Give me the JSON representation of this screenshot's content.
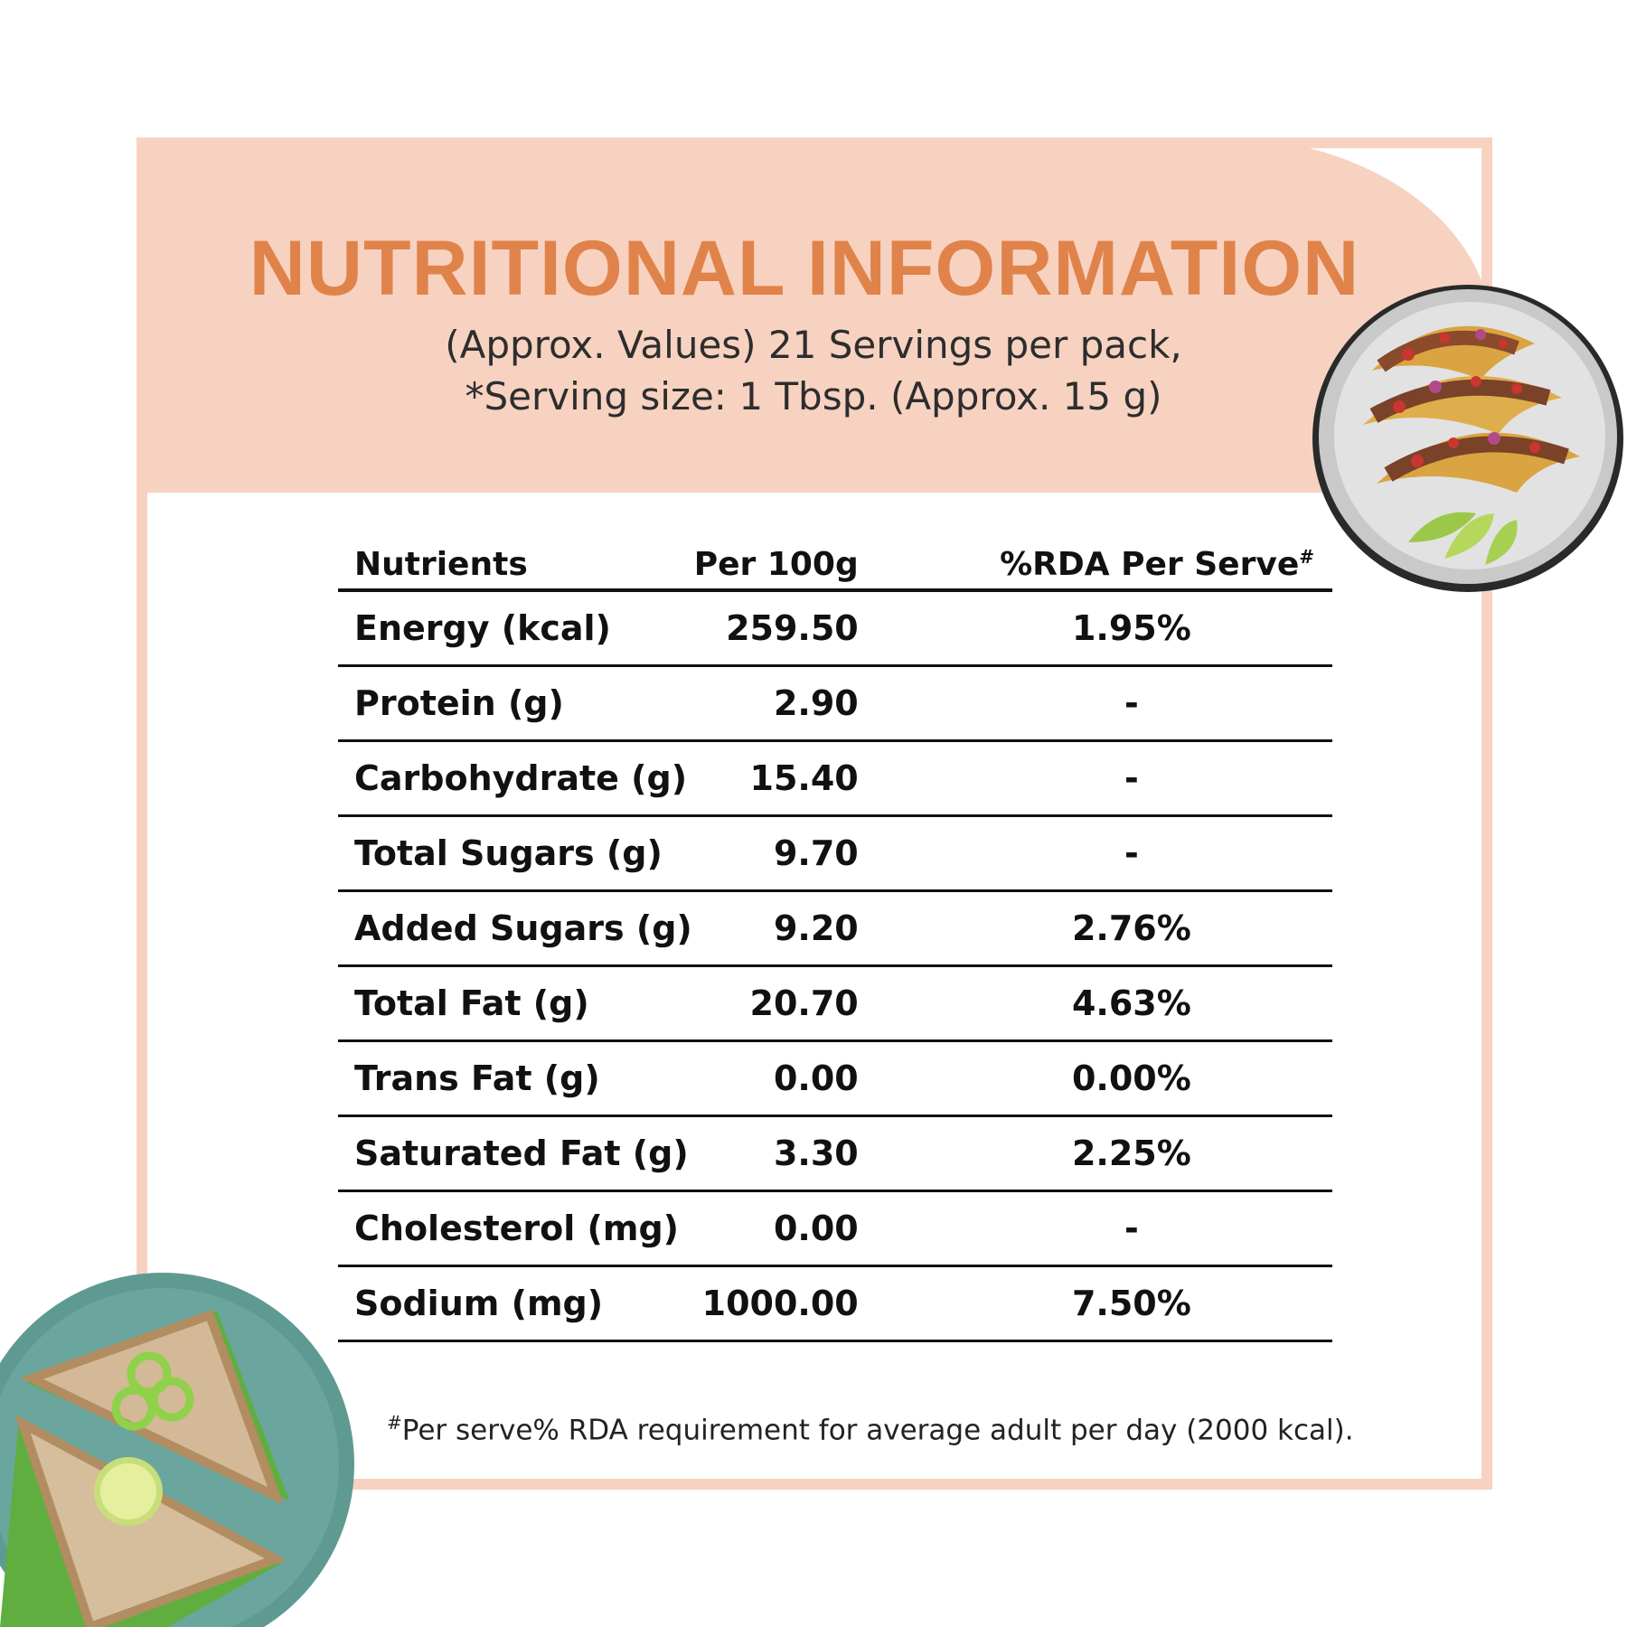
{
  "header": {
    "title": "NUTRITIONAL INFORMATION",
    "subtitle_line1": "(Approx. Values) 21 Servings per pack,",
    "subtitle_line2": "*Serving size: 1 Tbsp. (Approx. 15 g)"
  },
  "table": {
    "headers": {
      "nutrients": "Nutrients",
      "per100": "Per 100g",
      "rda": "%RDA Per Serve",
      "rda_mark": "#"
    },
    "rows": [
      {
        "name": "Energy (kcal)",
        "per100": "259.50",
        "rda": "1.95%"
      },
      {
        "name": "Protein (g)",
        "per100": "2.90",
        "rda": "-"
      },
      {
        "name": "Carbohydrate (g)",
        "per100": "15.40",
        "rda": "-"
      },
      {
        "name": "Total Sugars (g)",
        "per100": "9.70",
        "rda": "-"
      },
      {
        "name": "Added Sugars (g)",
        "per100": "9.20",
        "rda": "2.76%"
      },
      {
        "name": "Total Fat (g)",
        "per100": "20.70",
        "rda": "4.63%"
      },
      {
        "name": "Trans Fat (g)",
        "per100": "0.00",
        "rda": "0.00%"
      },
      {
        "name": "Saturated Fat (g)",
        "per100": "3.30",
        "rda": "2.25%"
      },
      {
        "name": "Cholesterol (mg)",
        "per100": "0.00",
        "rda": "-"
      },
      {
        "name": "Sodium (mg)",
        "per100": "1000.00",
        "rda": "7.50%"
      }
    ]
  },
  "footnote": {
    "mark": "#",
    "text": "Per serve% RDA requirement for average adult per day (2000 kcal)."
  },
  "colors": {
    "accent": "#e0834a",
    "peach": "#f7d2c1",
    "text": "#111111"
  },
  "icons": [
    "taco-plate-image",
    "sandwich-plate-image"
  ]
}
